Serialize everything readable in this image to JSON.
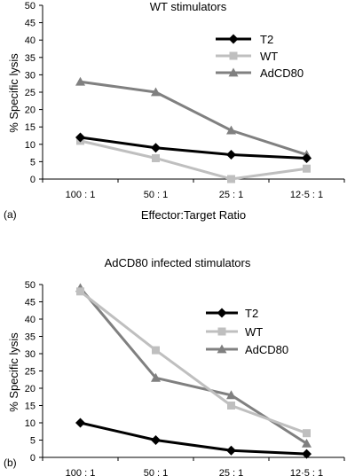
{
  "chart_data": [
    {
      "type": "line",
      "panel_label": "(a)",
      "title": "WT stimulators",
      "xlabel": "Effector:Target Ratio",
      "ylabel": "% Specific lysis",
      "categories": [
        "100 : 1",
        "50 : 1",
        "25 : 1",
        "12·5 : 1"
      ],
      "ylim": [
        0,
        50
      ],
      "yticks": [
        "0",
        "5",
        "10",
        "15",
        "20",
        "25",
        "30",
        "35",
        "40",
        "45",
        "50"
      ],
      "grid": false,
      "legend_position": "top-right",
      "series": [
        {
          "name": "T2",
          "values": [
            12,
            9,
            7,
            6
          ],
          "color": "#000000",
          "marker": "diamond"
        },
        {
          "name": "WT",
          "values": [
            11,
            6,
            0,
            3
          ],
          "color": "#bfbfbf",
          "marker": "square"
        },
        {
          "name": "AdCD80",
          "values": [
            28,
            25,
            14,
            7
          ],
          "color": "#808080",
          "marker": "triangle"
        }
      ]
    },
    {
      "type": "line",
      "panel_label": "(b)",
      "title": "AdCD80 infected stimulators",
      "xlabel": "",
      "ylabel": "% Specific lysis",
      "categories": [
        "100 : 1",
        "50 : 1",
        "25 : 1",
        "12·5 : 1"
      ],
      "ylim": [
        0,
        50
      ],
      "yticks": [
        "0",
        "5",
        "10",
        "15",
        "20",
        "25",
        "30",
        "35",
        "40",
        "45",
        "50"
      ],
      "grid": false,
      "legend_position": "top-right",
      "series": [
        {
          "name": "T2",
          "values": [
            10,
            5,
            2,
            1
          ],
          "color": "#000000",
          "marker": "diamond"
        },
        {
          "name": "WT",
          "values": [
            48,
            31,
            15,
            7
          ],
          "color": "#bfbfbf",
          "marker": "square"
        },
        {
          "name": "AdCD80",
          "values": [
            49,
            23,
            18,
            4
          ],
          "color": "#808080",
          "marker": "triangle"
        }
      ]
    }
  ]
}
